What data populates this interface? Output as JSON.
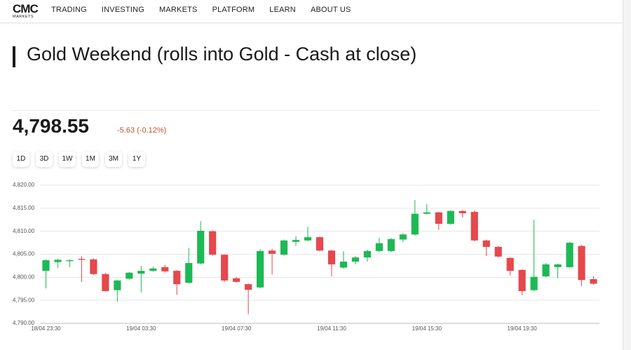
{
  "nav": {
    "logo": "CMC",
    "logo_sub": "MARKETS",
    "items": [
      "TRADING",
      "INVESTING",
      "MARKETS",
      "PLATFORM",
      "LEARN",
      "ABOUT US"
    ]
  },
  "header": {
    "title": "Gold Weekend (rolls into Gold - Cash at close)"
  },
  "quote": {
    "price": "4,798.55",
    "change": "-5.63 (-0.12%)"
  },
  "ranges": [
    "1D",
    "3D",
    "1W",
    "1M",
    "3M",
    "1Y"
  ],
  "chart_data": {
    "type": "candlestick",
    "categories": [
      "18/04 23:30",
      null,
      null,
      null,
      null,
      null,
      null,
      null,
      "19/04 03:30",
      null,
      null,
      null,
      null,
      null,
      null,
      null,
      "19/04 07:30",
      null,
      null,
      null,
      null,
      null,
      null,
      null,
      "19/04 11:30",
      null,
      null,
      null,
      null,
      null,
      null,
      null,
      "19/04 15:30",
      null,
      null,
      null,
      null,
      null,
      null,
      null,
      "19/04 19:30",
      null,
      null,
      null,
      null,
      null,
      null
    ],
    "open": [
      4801.4,
      4803.3,
      4803.5,
      4804.0,
      4803.9,
      4800.7,
      4797.2,
      4799.7,
      4800.8,
      4801.4,
      4802.2,
      4801.4,
      4798.8,
      4803.0,
      4810.0,
      4804.9,
      4799.8,
      4798.5,
      4797.8,
      4805.8,
      4804.9,
      4807.7,
      4808.0,
      4808.7,
      4805.8,
      4802.1,
      4803.4,
      4804.3,
      4805.7,
      4805.7,
      4808.2,
      4809.3,
      4813.8,
      4814.1,
      4811.6,
      4814.4,
      4814.2,
      4808.0,
      4806.6,
      4804.2,
      4801.6,
      4797.2,
      4800.2,
      4802.2,
      4802.2,
      4806.8,
      4799.6
    ],
    "high": [
      4803.9,
      4804.0,
      4803.9,
      4804.6,
      4804.1,
      4801.0,
      4799.5,
      4801.2,
      4802.5,
      4802.3,
      4802.7,
      4801.6,
      4806.4,
      4812.2,
      4810.2,
      4805.0,
      4800.1,
      4798.7,
      4806.1,
      4806.2,
      4808.2,
      4808.9,
      4811.0,
      4808.9,
      4806.0,
      4805.7,
      4804.6,
      4806.0,
      4808.6,
      4808.5,
      4809.6,
      4816.8,
      4815.9,
      4814.2,
      4814.6,
      4814.6,
      4814.5,
      4808.2,
      4806.8,
      4804.4,
      4801.8,
      4812.5,
      4803.1,
      4803.0,
      4807.7,
      4807.0,
      4800.2
    ],
    "low": [
      4797.6,
      4802.0,
      4802.2,
      4799.0,
      4800.5,
      4796.9,
      4794.7,
      4799.4,
      4796.7,
      4801.2,
      4801.0,
      4796.2,
      4798.6,
      4802.8,
      4804.7,
      4799.0,
      4798.8,
      4792.0,
      4797.6,
      4800.6,
      4804.7,
      4806.8,
      4807.8,
      4805.6,
      4800.2,
      4801.9,
      4802.8,
      4803.4,
      4805.5,
      4805.5,
      4807.6,
      4809.0,
      4813.6,
      4810.3,
      4811.4,
      4813.0,
      4807.8,
      4804.6,
      4804.3,
      4800.4,
      4796.1,
      4797.0,
      4800.0,
      4799.8,
      4802.0,
      4798.1,
      4798.4
    ],
    "close": [
      4803.7,
      4803.8,
      4803.7,
      4803.8,
      4800.7,
      4797.0,
      4799.3,
      4801.0,
      4801.4,
      4801.9,
      4801.3,
      4798.5,
      4803.1,
      4810.1,
      4804.9,
      4799.3,
      4799.0,
      4797.3,
      4805.7,
      4805.1,
      4808.0,
      4808.1,
      4808.7,
      4805.8,
      4802.8,
      4803.4,
      4804.3,
      4805.7,
      4807.4,
      4808.3,
      4809.3,
      4813.8,
      4814.1,
      4811.6,
      4814.4,
      4813.9,
      4808.0,
      4806.6,
      4804.5,
      4801.4,
      4797.0,
      4800.1,
      4802.8,
      4802.8,
      4807.5,
      4799.4,
      4798.6
    ],
    "up_color": "#1db954",
    "down_color": "#e5484d",
    "ylim": [
      4790,
      4820
    ],
    "yticks": [
      {
        "value": 4790,
        "label": "4,790.00"
      },
      {
        "value": 4795,
        "label": "4,795.00"
      },
      {
        "value": 4800,
        "label": "4,800.00"
      },
      {
        "value": 4805,
        "label": "4,805.00"
      },
      {
        "value": 4810,
        "label": "4,810.00"
      },
      {
        "value": 4815,
        "label": "4,815.00"
      },
      {
        "value": 4820,
        "label": "4,820.00"
      }
    ],
    "grid": true
  }
}
